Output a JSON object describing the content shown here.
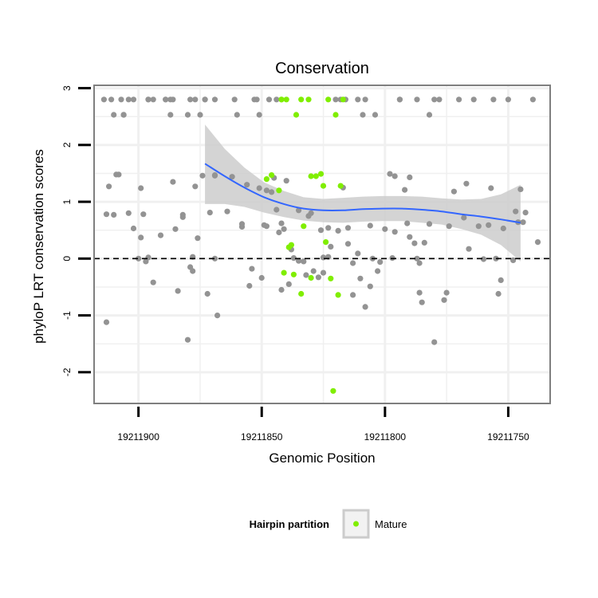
{
  "chart_data": {
    "type": "scatter",
    "title": "Conservation",
    "xlabel": "Genomic Position",
    "ylabel": "phyloP LRT conservation scores",
    "xlim": [
      19211918,
      19211733
    ],
    "x_reversed": true,
    "ylim": [
      -2.55,
      3.05
    ],
    "x_ticks": [
      19211900,
      19211850,
      19211800,
      19211750
    ],
    "x_tick_labels": [
      "19211900",
      "19211850",
      "19211800",
      "19211750"
    ],
    "y_ticks": [
      -2,
      -1,
      0,
      1,
      2,
      3
    ],
    "y_tick_labels": [
      "-2",
      "-1",
      "0",
      "1",
      "2",
      "3"
    ],
    "reference_line": {
      "y": 0,
      "style": "dashed",
      "color": "#000000"
    },
    "grid": true,
    "legend": {
      "title": "Hairpin partition",
      "position": "bottom",
      "entries": [
        {
          "label": "Mature",
          "color": "#80ee00"
        }
      ]
    },
    "colors": {
      "other": "#939393",
      "mature": "#80ee00",
      "smooth_line": "#3366ff",
      "band": "#cccccc",
      "panel_grid": "#f0f0f0",
      "panel_border": "#7f7f7f"
    },
    "series": [
      {
        "name": "",
        "color": "#939393",
        "x": [
          19211914,
          19211904,
          19211907,
          19211911,
          19211912,
          19211909,
          19211908,
          19211906,
          19211913,
          19211910,
          19211913,
          19211906,
          19211910,
          19211906,
          19211904,
          19211899,
          19211896,
          19211894,
          19211896,
          19211902,
          19211902,
          19211899,
          19211900,
          19211894,
          19211896,
          19211897,
          19211898,
          19211889,
          19211889,
          19211887,
          19211886,
          19211882,
          19211882,
          19211878,
          19211879,
          19211880,
          19211877,
          19211876,
          19211880,
          19211873,
          19211879,
          19211875,
          19211874,
          19211869,
          19211871,
          19211869,
          19211869,
          19211860,
          19211851,
          19211848,
          19211848,
          19211847,
          19211846,
          19211844,
          19211844,
          19211843,
          19211842,
          19211840,
          19211839,
          19211837,
          19211835,
          19211833,
          19211831,
          19211829,
          19211827,
          19211825,
          19211823,
          19211823,
          19211819,
          19211818,
          19211817,
          19211815,
          19211813,
          19211811,
          19211809,
          19211808,
          19211806,
          19211804,
          19211802,
          19211800,
          19211798,
          19211796,
          19211794,
          19211792,
          19211790,
          19211788,
          19211786,
          19211785,
          19211784,
          19211782,
          19211780,
          19211778,
          19211776,
          19211774,
          19211772,
          19211770,
          19211768,
          19211766,
          19211764,
          19211762,
          19211760,
          19211758,
          19211756,
          19211754,
          19211752,
          19211750,
          19211748,
          19211747,
          19211746,
          19211745,
          19211744,
          19211743,
          19211740,
          19211738,
          19211782,
          19211787,
          19211790,
          19211791,
          19211794,
          19211797,
          19211811,
          19211816,
          19211810,
          19211813,
          19211815,
          19211820,
          19211822,
          19211825,
          19211830,
          19211832,
          19211835,
          19211838,
          19211841,
          19211842,
          19211845,
          19211856,
          19211854,
          19211858,
          19211862,
          19211861,
          19211864,
          19211869,
          19211872,
          19211878,
          19211887,
          19211891,
          19211884,
          19211885,
          19211886,
          19211868,
          19211858,
          19211853,
          19211849,
          19211851,
          19211855,
          19211775,
          19211780,
          19211796,
          19211805,
          19211803,
          19211787,
          19211757,
          19211755,
          19211753,
          19211786,
          19211767,
          19211826,
          19211806,
          19211808,
          19211852,
          19211850,
          19211873,
          19211877
        ],
        "y": [
          2.8,
          2.8,
          2.8,
          2.8,
          1.27,
          1.48,
          1.48,
          2.53,
          0.78,
          0.77,
          -1.12,
          2.53,
          2.53,
          2.53,
          0.8,
          1.24,
          2.8,
          2.8,
          2.8,
          2.8,
          0.53,
          0.37,
          0.0,
          -0.42,
          0.02,
          -0.05,
          0.78,
          2.8,
          2.8,
          2.53,
          1.35,
          0.77,
          0.73,
          -0.22,
          -0.15,
          -1.43,
          1.27,
          0.36,
          2.53,
          2.8,
          2.8,
          2.53,
          1.46,
          1.46,
          0.81,
          0.0,
          1.47,
          2.53,
          2.53,
          0.57,
          1.2,
          2.8,
          1.17,
          0.86,
          2.8,
          0.46,
          -0.55,
          1.37,
          -0.45,
          0.01,
          0.85,
          -0.05,
          0.75,
          -0.22,
          -0.33,
          -0.25,
          0.03,
          0.54,
          0.49,
          2.8,
          1.25,
          0.54,
          -0.08,
          2.8,
          2.53,
          -0.85,
          -0.49,
          2.53,
          -0.06,
          0.52,
          1.49,
          1.45,
          2.8,
          1.21,
          1.43,
          0.27,
          -0.08,
          -0.77,
          0.28,
          0.61,
          2.8,
          2.8,
          -0.73,
          0.57,
          1.18,
          2.8,
          0.72,
          0.17,
          2.8,
          0.57,
          -0.01,
          0.59,
          2.8,
          -0.62,
          0.53,
          2.8,
          -0.03,
          0.83,
          0.64,
          1.22,
          0.64,
          0.81,
          2.8,
          0.29,
          2.53,
          2.8,
          0.38,
          0.62,
          2.8,
          0.01,
          0.09,
          2.8,
          -0.35,
          -0.64,
          0.26,
          2.8,
          0.21,
          0.02,
          0.8,
          -0.29,
          -0.04,
          0.16,
          0.52,
          0.62,
          1.42,
          1.3,
          -0.18,
          0.56,
          1.44,
          2.8,
          0.83,
          2.8,
          -0.62,
          0.03,
          2.8,
          0.41,
          -0.57,
          0.52,
          2.8,
          -1.0,
          0.61,
          2.8,
          0.59,
          1.24,
          -0.48,
          -0.6,
          -1.47,
          0.47,
          0.0,
          -0.22,
          0.0,
          1.24,
          0.0,
          -0.38,
          -0.6,
          1.32,
          0.5,
          0.58,
          2.8,
          2.8,
          -0.34,
          2.8,
          2.8
        ]
      },
      {
        "name": "Mature",
        "color": "#80ee00",
        "x": [
          19211848,
          19211846,
          19211843,
          19211842,
          19211842,
          19211841,
          19211840,
          19211839,
          19211838,
          19211837,
          19211836,
          19211834,
          19211833,
          19211831,
          19211830,
          19211828,
          19211826,
          19211825,
          19211824,
          19211823,
          19211822,
          19211821,
          19211820,
          19211819,
          19211818,
          19211817,
          19211830,
          19211834
        ],
        "y": [
          1.4,
          1.47,
          1.2,
          2.8,
          2.8,
          -0.25,
          2.8,
          0.2,
          0.24,
          -0.28,
          2.53,
          -0.62,
          0.57,
          2.8,
          -0.34,
          1.45,
          1.49,
          1.28,
          0.29,
          2.8,
          -0.35,
          -2.33,
          2.53,
          -0.64,
          1.28,
          2.8,
          1.45,
          2.8
        ]
      }
    ],
    "smooth": {
      "x": [
        19211873,
        19211865,
        19211857,
        19211849,
        19211841,
        19211833,
        19211825,
        19211817,
        19211809,
        19211801,
        19211793,
        19211785,
        19211777,
        19211769,
        19211761,
        19211753,
        19211745
      ],
      "y": [
        1.67,
        1.45,
        1.25,
        1.08,
        0.96,
        0.88,
        0.85,
        0.85,
        0.87,
        0.88,
        0.88,
        0.86,
        0.83,
        0.78,
        0.74,
        0.69,
        0.63
      ],
      "lower": [
        0.96,
        0.96,
        0.91,
        0.81,
        0.73,
        0.67,
        0.64,
        0.63,
        0.65,
        0.66,
        0.66,
        0.63,
        0.6,
        0.52,
        0.42,
        0.24,
        -0.05
      ],
      "upper": [
        2.36,
        1.93,
        1.6,
        1.34,
        1.19,
        1.08,
        1.05,
        1.07,
        1.09,
        1.1,
        1.1,
        1.09,
        1.06,
        1.04,
        1.05,
        1.13,
        1.3
      ]
    }
  }
}
